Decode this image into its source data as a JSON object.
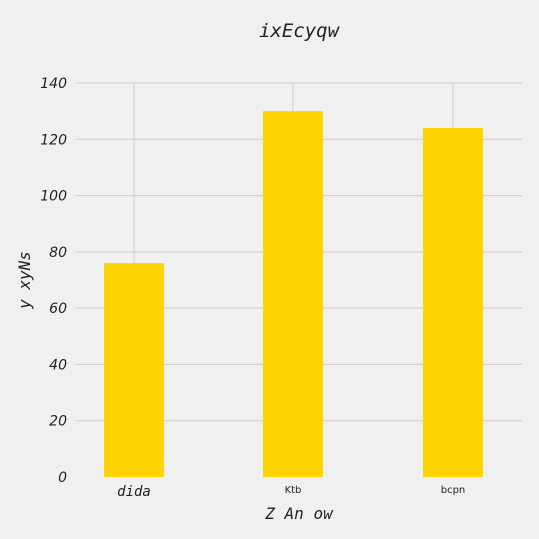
{
  "chart_data": {
    "type": "bar",
    "title": "ixEcyqw",
    "xlabel": "Z An ow",
    "ylabel": "y xyNs",
    "categories": [
      "dida",
      "Ktb",
      "bcpn"
    ],
    "values": [
      76,
      130,
      124
    ],
    "ylim": [
      0,
      140
    ],
    "yticks": [
      "0",
      "20",
      "40",
      "60",
      "80",
      "100",
      "120",
      "140"
    ],
    "bar_color": "#ffd400",
    "grid": true,
    "legend": "none"
  }
}
